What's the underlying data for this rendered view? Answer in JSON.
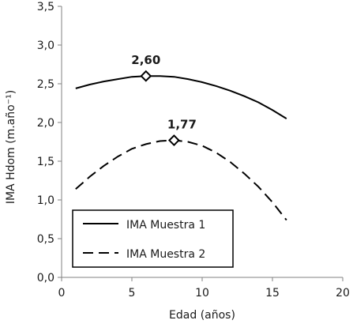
{
  "chart_data": {
    "type": "line",
    "xlabel": "Edad (años)",
    "ylabel": "IMA Hdom (m.año⁻¹)",
    "xlim": [
      0,
      20
    ],
    "ylim": [
      0,
      3.5
    ],
    "x_ticks": [
      "0",
      "5",
      "10",
      "15",
      "20"
    ],
    "y_ticks": [
      "0,0",
      "0,5",
      "1,0",
      "1,5",
      "2,0",
      "2,5",
      "3,0",
      "3,5"
    ],
    "grid": false,
    "legend_position": "bottom-left",
    "series": [
      {
        "name": "IMA Muestra 1",
        "line_style": "solid",
        "color": "#000000",
        "x": [
          1,
          2,
          3,
          4,
          5,
          6,
          7,
          8,
          9,
          10,
          11,
          12,
          13,
          14,
          15,
          16
        ],
        "y": [
          2.44,
          2.49,
          2.53,
          2.56,
          2.59,
          2.6,
          2.6,
          2.59,
          2.56,
          2.52,
          2.47,
          2.41,
          2.34,
          2.26,
          2.16,
          2.05
        ],
        "peak": {
          "x": 6,
          "y": 2.6,
          "label": "2,60"
        }
      },
      {
        "name": "IMA Muestra 2",
        "line_style": "dashed",
        "color": "#000000",
        "x": [
          1,
          2,
          3,
          4,
          5,
          6,
          7,
          8,
          9,
          10,
          11,
          12,
          13,
          14,
          15,
          16
        ],
        "y": [
          1.14,
          1.3,
          1.44,
          1.56,
          1.66,
          1.72,
          1.76,
          1.77,
          1.75,
          1.7,
          1.61,
          1.49,
          1.34,
          1.17,
          0.97,
          0.74
        ],
        "peak": {
          "x": 8,
          "y": 1.77,
          "label": "1,77"
        }
      }
    ]
  }
}
